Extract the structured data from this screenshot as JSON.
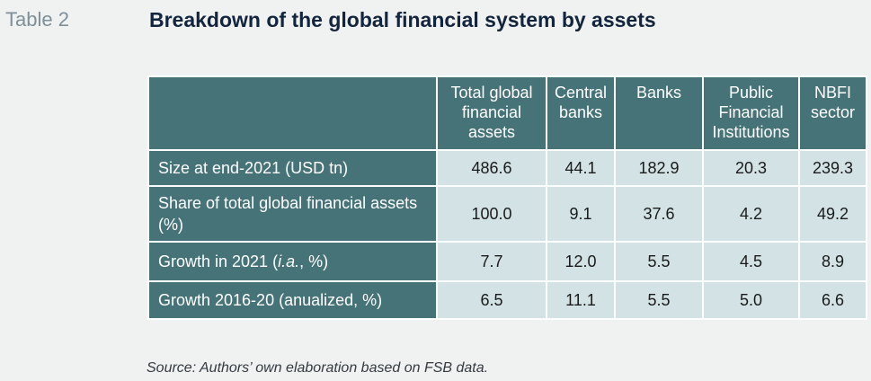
{
  "table_label": "Table 2",
  "title": "Breakdown of the global financial system by assets",
  "columns": [
    "",
    "Total global financial assets",
    "Central banks",
    "Banks",
    "Public Financial Institutions",
    "NBFI sector"
  ],
  "rows": [
    {
      "label": "Size at end-2021 (USD tn)",
      "values": [
        "486.6",
        "44.1",
        "182.9",
        "20.3",
        "239.3"
      ]
    },
    {
      "label": "Share of total global financial assets (%)",
      "values": [
        "100.0",
        "9.1",
        "37.6",
        "4.2",
        "49.2"
      ]
    },
    {
      "label_prefix": "Growth in 2021 (",
      "label_italic": "i.a.",
      "label_suffix": ", %)",
      "values": [
        "7.7",
        "12.0",
        "5.5",
        "4.5",
        "8.9"
      ]
    },
    {
      "label": "Growth 2016-20 (anualized, %)",
      "values": [
        "6.5",
        "11.1",
        "5.5",
        "5.0",
        "6.6"
      ]
    }
  ],
  "source": "Source: Authors’ own elaboration based on FSB data.",
  "colors": {
    "header_bg": "#457378",
    "cell_bg": "#d3e3e5",
    "title": "#13253d",
    "table_label": "#7f8f99",
    "page_bg": "#f0f2f2"
  }
}
